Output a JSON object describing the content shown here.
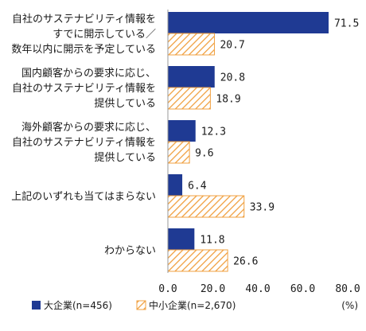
{
  "chart_data": {
    "type": "bar",
    "orientation": "horizontal",
    "categories": [
      [
        "自社のサステナビリティ情報を",
        "すでに開示している／",
        "数年以内に開示を予定している"
      ],
      [
        "国内顧客からの要求に応じ、",
        "自社のサステナビリティ情報を",
        "提供している"
      ],
      [
        "海外顧客からの要求に応じ、",
        "自社のサステナビリティ情報を",
        "提供している"
      ],
      [
        "上記のいずれも当てはまらない"
      ],
      [
        "わからない"
      ]
    ],
    "series": [
      {
        "name": "大企業(n=456)",
        "color": "#1f3a93",
        "style": "solid",
        "values": [
          71.5,
          20.8,
          12.3,
          6.4,
          11.8
        ],
        "labels": [
          "71.5",
          "20.8",
          "12.3",
          "6.4",
          "11.8"
        ]
      },
      {
        "name": "中小企業(n=2,670)",
        "color": "#f0a040",
        "style": "hatched",
        "values": [
          20.7,
          18.9,
          9.6,
          33.9,
          26.6
        ],
        "labels": [
          "20.7",
          "18.9",
          "9.6",
          "33.9",
          "26.6"
        ]
      }
    ],
    "xlim": [
      0,
      80
    ],
    "xticks": [
      "0.0",
      "20.0",
      "40.0",
      "60.0",
      "80.0"
    ],
    "xtick_values": [
      0,
      20,
      40,
      60,
      80
    ],
    "unit": "(%)",
    "grid": false,
    "legend_position": "bottom-left"
  }
}
